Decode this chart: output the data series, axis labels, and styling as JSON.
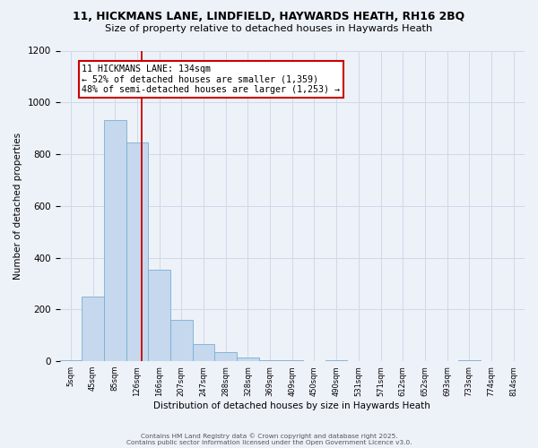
{
  "title1": "11, HICKMANS LANE, LINDFIELD, HAYWARDS HEATH, RH16 2BQ",
  "title2": "Size of property relative to detached houses in Haywards Heath",
  "xlabel": "Distribution of detached houses by size in Haywards Heath",
  "ylabel": "Number of detached properties",
  "bar_color": "#c5d8ed",
  "bar_edge_color": "#7aafd4",
  "categories": [
    "5sqm",
    "45sqm",
    "85sqm",
    "126sqm",
    "166sqm",
    "207sqm",
    "247sqm",
    "288sqm",
    "328sqm",
    "369sqm",
    "409sqm",
    "450sqm",
    "490sqm",
    "531sqm",
    "571sqm",
    "612sqm",
    "652sqm",
    "693sqm",
    "733sqm",
    "774sqm",
    "814sqm"
  ],
  "values": [
    5,
    248,
    930,
    845,
    355,
    160,
    65,
    35,
    15,
    5,
    5,
    0,
    5,
    0,
    0,
    0,
    0,
    0,
    5,
    0,
    0
  ],
  "vline_cat_idx": 3.22,
  "vline_color": "#cc0000",
  "annotation_line1": "11 HICKMANS LANE: 134sqm",
  "annotation_line2": "← 52% of detached houses are smaller (1,359)",
  "annotation_line3": "48% of semi-detached houses are larger (1,253) →",
  "annotation_box_color": "#ffffff",
  "annotation_box_edge": "#cc0000",
  "ylim": [
    0,
    1200
  ],
  "yticks": [
    0,
    200,
    400,
    600,
    800,
    1000,
    1200
  ],
  "grid_color": "#d0d9e8",
  "background_color": "#edf1f8",
  "footer1": "Contains HM Land Registry data © Crown copyright and database right 2025.",
  "footer2": "Contains public sector information licensed under the Open Government Licence v3.0."
}
